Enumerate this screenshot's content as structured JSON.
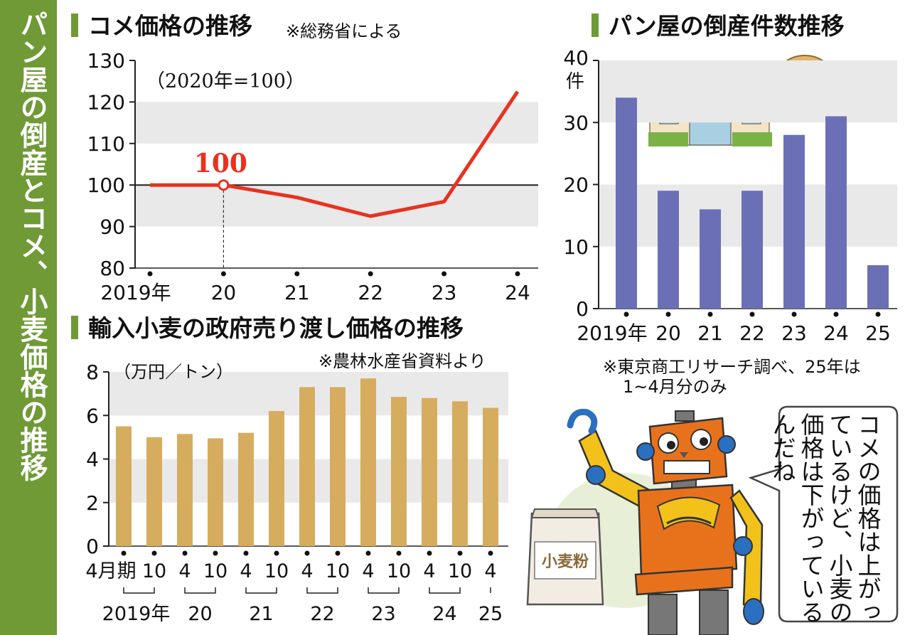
{
  "headline": "パン屋の倒産とコメ、小麦価格の推移",
  "colors": {
    "green": "#6f9a36",
    "red": "#e8321f",
    "blue": "#6b70b6",
    "gold": "#d6ac5e",
    "band": "#e9e9e9"
  },
  "chart_data": [
    {
      "type": "line",
      "title": "コメ価格の推移",
      "source": "※総務省による",
      "unit_note": "（2020年=100）",
      "x": [
        "2019年",
        "20",
        "21",
        "22",
        "23",
        "24"
      ],
      "values": [
        100,
        100,
        97,
        92.5,
        96,
        122.5
      ],
      "highlight_label": "100",
      "ylim": [
        80,
        130
      ],
      "yticks": [
        "80",
        "90",
        "100",
        "110",
        "120",
        "130"
      ],
      "grid": "alternating bands"
    },
    {
      "type": "bar",
      "title": "パン屋の倒産件数推移",
      "unit": "件",
      "categories": [
        "2019年",
        "20",
        "21",
        "22",
        "23",
        "24",
        "25"
      ],
      "values": [
        34,
        19,
        16,
        19,
        28,
        31,
        7
      ],
      "ylim": [
        0,
        40
      ],
      "yticks": [
        "0",
        "10",
        "20",
        "30",
        "40"
      ],
      "note_line1": "※東京商工リサーチ調べ、25年は",
      "note_line2": "1~4月分のみ"
    },
    {
      "type": "bar",
      "title": "輸入小麦の政府売り渡し価格の推移",
      "source": "※農林水産省資料より",
      "unit_note": "（万円／トン）",
      "categories": [
        "4月期",
        "10",
        "4",
        "10",
        "4",
        "10",
        "4",
        "10",
        "4",
        "10",
        "4",
        "10",
        "4"
      ],
      "values": [
        5.5,
        5.0,
        5.15,
        4.95,
        5.2,
        6.2,
        7.3,
        7.3,
        7.7,
        6.85,
        6.8,
        6.65,
        6.35
      ],
      "year_labels": [
        "2019年",
        "20",
        "21",
        "22",
        "23",
        "24",
        "25"
      ],
      "ylim": [
        0,
        8
      ],
      "yticks": [
        "0",
        "2",
        "4",
        "6",
        "8"
      ]
    }
  ],
  "illustration": {
    "flour_bag_label": "小麦粉",
    "speech": "コメの価格は上がっているけど、小麦の価格は下がっているんだね"
  }
}
